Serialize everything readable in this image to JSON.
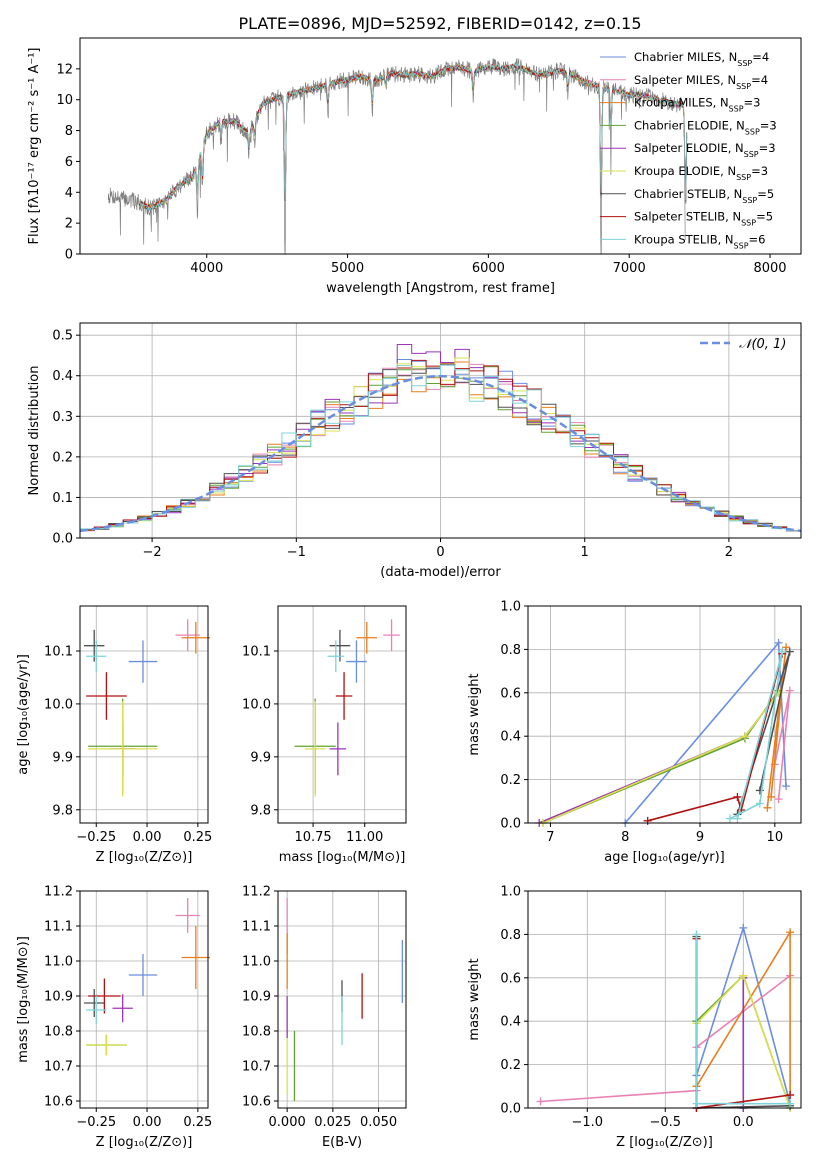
{
  "title": "PLATE=0896, MJD=52592, FIBERID=0142, z=0.15",
  "colors": {
    "Chabrier MILES": "#6a8ee0",
    "Salpeter MILES": "#e882b4",
    "Kroupa MILES": "#e87e1c",
    "Chabrier ELODIE": "#62a232",
    "Salpeter ELODIE": "#9b34b8",
    "Kroupa ELODIE": "#d9e04e",
    "Chabrier STELIB": "#505050",
    "Salpeter STELIB": "#b01010",
    "Kroupa STELIB": "#7cd4d8",
    "normal": "#6a8ee0",
    "observed": "#808080"
  },
  "chart_data": [
    {
      "type": "line",
      "xlabel": "wavelength [Angstrom, rest frame]",
      "ylabel": "Flux [fλ10⁻¹⁷ erg cm⁻² s⁻¹ A⁻¹]",
      "xlim": [
        3100,
        8220
      ],
      "ylim": [
        0,
        14
      ],
      "xticks": [
        4000,
        5000,
        6000,
        7000,
        8000
      ],
      "yticks": [
        0,
        2,
        4,
        6,
        8,
        10,
        12
      ],
      "grid": false,
      "legend_placement": "top-right",
      "legend": [
        {
          "name": "Chabrier MILES",
          "nssp": "4"
        },
        {
          "name": "Salpeter MILES",
          "nssp": "4"
        },
        {
          "name": "Kroupa MILES",
          "nssp": "3"
        },
        {
          "name": "Chabrier ELODIE",
          "nssp": "3"
        },
        {
          "name": "Salpeter ELODIE",
          "nssp": "3"
        },
        {
          "name": "Kroupa ELODIE",
          "nssp": "3"
        },
        {
          "name": "Chabrier STELIB",
          "nssp": "5"
        },
        {
          "name": "Salpeter STELIB",
          "nssp": "5"
        },
        {
          "name": "Kroupa STELIB",
          "nssp": "6"
        }
      ],
      "continuum": [
        [
          3300,
          3.8
        ],
        [
          3500,
          3.4
        ],
        [
          3600,
          3.0
        ],
        [
          3700,
          3.4
        ],
        [
          3800,
          4.4
        ],
        [
          3900,
          5.0
        ],
        [
          4000,
          7.8
        ],
        [
          4100,
          8.6
        ],
        [
          4200,
          8.6
        ],
        [
          4300,
          7.8
        ],
        [
          4400,
          9.8
        ],
        [
          4500,
          10.1
        ],
        [
          4600,
          10.4
        ],
        [
          4700,
          10.6
        ],
        [
          4800,
          10.8
        ],
        [
          4900,
          11.1
        ],
        [
          5000,
          11.3
        ],
        [
          5100,
          11.5
        ],
        [
          5200,
          11.2
        ],
        [
          5300,
          11.7
        ],
        [
          5400,
          11.6
        ],
        [
          5500,
          11.7
        ],
        [
          5600,
          11.5
        ],
        [
          5700,
          12.0
        ],
        [
          5800,
          12.1
        ],
        [
          5900,
          11.8
        ],
        [
          6000,
          12.2
        ],
        [
          6100,
          12.0
        ],
        [
          6200,
          12.2
        ],
        [
          6300,
          11.8
        ],
        [
          6400,
          11.6
        ],
        [
          6500,
          11.9
        ],
        [
          6600,
          11.6
        ],
        [
          6700,
          11.1
        ],
        [
          6800,
          10.8
        ],
        [
          6900,
          10.6
        ],
        [
          7000,
          10.3
        ],
        [
          7100,
          10.3
        ],
        [
          7200,
          10.0
        ],
        [
          7300,
          9.8
        ],
        [
          7400,
          9.6
        ]
      ],
      "absorption_lines": [
        {
          "x": 3934,
          "depth": 3.2
        },
        {
          "x": 3969,
          "depth": 3.0
        },
        {
          "x": 4102,
          "depth": 1.5
        },
        {
          "x": 4300,
          "depth": 1.3
        },
        {
          "x": 4340,
          "depth": 1.4
        },
        {
          "x": 4556,
          "depth": 10.4
        },
        {
          "x": 4861,
          "depth": 1.8
        },
        {
          "x": 5175,
          "depth": 2.2
        },
        {
          "x": 5270,
          "depth": 1.0
        },
        {
          "x": 5892,
          "depth": 1.6
        },
        {
          "x": 6563,
          "depth": 1.2
        },
        {
          "x": 6800,
          "depth": 10.8
        },
        {
          "x": 6870,
          "depth": 3.4
        },
        {
          "x": 7400,
          "depth": 9.6
        }
      ],
      "x_range_observed": [
        3300,
        7400
      ],
      "x_range_model": [
        3520,
        7410
      ]
    },
    {
      "type": "histogram",
      "xlabel": "(data-model)/error",
      "ylabel": "Normed distribution",
      "xlim": [
        -2.5,
        2.5
      ],
      "ylim": [
        0,
        0.53
      ],
      "xticks": [
        -2,
        -1,
        0,
        1,
        2
      ],
      "yticks": [
        0.0,
        0.1,
        0.2,
        0.3,
        0.4,
        0.5
      ],
      "grid": true,
      "legend_placement": "top-right",
      "normal_label": "𝒩(0, 1)",
      "bin_width": 0.1,
      "histogram_peaks": [
        0.46,
        0.42,
        0.4,
        0.4,
        0.5,
        0.45,
        0.42,
        0.44,
        0.43
      ],
      "series_order": [
        "Chabrier MILES",
        "Salpeter MILES",
        "Kroupa MILES",
        "Chabrier ELODIE",
        "Salpeter ELODIE",
        "Kroupa ELODIE",
        "Chabrier STELIB",
        "Salpeter STELIB",
        "Kroupa STELIB"
      ]
    },
    {
      "type": "scatter",
      "xlabel": "Z [log₁₀(Z/Z⊙)]",
      "ylabel": "age  [log₁₀(age/yr)]",
      "xlim": [
        -0.33,
        0.3
      ],
      "ylim": [
        9.775,
        10.185
      ],
      "xticks": [
        -0.25,
        0.0,
        0.25
      ],
      "xticklabels": [
        "−0.25",
        "0.00",
        "0.25"
      ],
      "yticks": [
        9.8,
        9.9,
        10.0,
        10.1
      ],
      "grid": true,
      "points": [
        {
          "series": "Chabrier MILES",
          "x": -0.02,
          "y": 10.08,
          "xerr": 0.07,
          "yerr": 0.04
        },
        {
          "series": "Salpeter MILES",
          "x": 0.2,
          "y": 10.13,
          "xerr": 0.06,
          "yerr": 0.03
        },
        {
          "series": "Kroupa MILES",
          "x": 0.24,
          "y": 10.125,
          "xerr": 0.07,
          "yerr": 0.03
        },
        {
          "series": "Chabrier ELODIE",
          "x": -0.12,
          "y": 9.92,
          "xerr": 0.17,
          "yerr": 0.09
        },
        {
          "series": "Salpeter ELODIE",
          "x": -0.12,
          "y": 9.915,
          "xerr": 0.06,
          "yerr": 0.05
        },
        {
          "series": "Kroupa ELODIE",
          "x": -0.12,
          "y": 9.915,
          "xerr": 0.17,
          "yerr": 0.09
        },
        {
          "series": "Chabrier STELIB",
          "x": -0.26,
          "y": 10.11,
          "xerr": 0.05,
          "yerr": 0.03
        },
        {
          "series": "Salpeter STELIB",
          "x": -0.2,
          "y": 10.015,
          "xerr": 0.1,
          "yerr": 0.045
        },
        {
          "series": "Kroupa STELIB",
          "x": -0.25,
          "y": 10.09,
          "xerr": 0.05,
          "yerr": 0.03
        }
      ]
    },
    {
      "type": "scatter",
      "xlabel": "mass [log₁₀(M/M⊙)]",
      "xlim": [
        10.58,
        11.2
      ],
      "ylim": [
        9.775,
        10.185
      ],
      "xticks": [
        10.75,
        11.0
      ],
      "xticklabels": [
        "10.75",
        "11.00"
      ],
      "yticks": [
        9.8,
        9.9,
        10.0,
        10.1
      ],
      "grid": true,
      "points": [
        {
          "series": "Chabrier MILES",
          "x": 10.96,
          "y": 10.08,
          "xerr": 0.05,
          "yerr": 0.04
        },
        {
          "series": "Salpeter MILES",
          "x": 11.13,
          "y": 10.13,
          "xerr": 0.04,
          "yerr": 0.03
        },
        {
          "series": "Kroupa MILES",
          "x": 11.01,
          "y": 10.125,
          "xerr": 0.05,
          "yerr": 0.03
        },
        {
          "series": "Chabrier ELODIE",
          "x": 10.76,
          "y": 9.92,
          "xerr": 0.1,
          "yerr": 0.09
        },
        {
          "series": "Salpeter ELODIE",
          "x": 10.87,
          "y": 9.915,
          "xerr": 0.04,
          "yerr": 0.05
        },
        {
          "series": "Kroupa ELODIE",
          "x": 10.76,
          "y": 9.915,
          "xerr": 0.05,
          "yerr": 0.09
        },
        {
          "series": "Chabrier STELIB",
          "x": 10.88,
          "y": 10.11,
          "xerr": 0.05,
          "yerr": 0.03
        },
        {
          "series": "Salpeter STELIB",
          "x": 10.9,
          "y": 10.015,
          "xerr": 0.04,
          "yerr": 0.045
        },
        {
          "series": "Kroupa STELIB",
          "x": 10.86,
          "y": 10.09,
          "xerr": 0.04,
          "yerr": 0.03
        }
      ]
    },
    {
      "type": "line",
      "xlabel": "age  [log₁₀(age/yr)]",
      "ylabel": "mass weight",
      "xlim": [
        6.7,
        10.35
      ],
      "ylim": [
        0,
        1
      ],
      "xticks": [
        7,
        8,
        9,
        10
      ],
      "yticks": [
        0.0,
        0.2,
        0.4,
        0.6,
        0.8,
        1.0
      ],
      "grid": true,
      "series": [
        {
          "series": "Chabrier MILES",
          "points": [
            [
              8.0,
              0.0
            ],
            [
              10.05,
              0.83
            ],
            [
              10.15,
              0.17
            ]
          ]
        },
        {
          "series": "Salpeter MILES",
          "points": [
            [
              10.0,
              0.27
            ],
            [
              10.2,
              0.61
            ],
            [
              10.05,
              0.11
            ]
          ]
        },
        {
          "series": "Kroupa MILES",
          "points": [
            [
              9.9,
              0.07
            ],
            [
              10.15,
              0.81
            ],
            [
              9.95,
              0.12
            ]
          ]
        },
        {
          "series": "Chabrier ELODIE",
          "points": [
            [
              6.9,
              0.0
            ],
            [
              9.6,
              0.39
            ],
            [
              10.05,
              0.61
            ]
          ]
        },
        {
          "series": "Salpeter ELODIE",
          "points": [
            [
              6.85,
              0.0
            ],
            [
              9.6,
              0.4
            ],
            [
              10.05,
              0.6
            ]
          ]
        },
        {
          "series": "Kroupa ELODIE",
          "points": [
            [
              6.9,
              0.0
            ],
            [
              9.6,
              0.4
            ],
            [
              10.05,
              0.6
            ]
          ]
        },
        {
          "series": "Chabrier STELIB",
          "points": [
            [
              9.8,
              0.15
            ],
            [
              10.2,
              0.79
            ],
            [
              9.5,
              0.04
            ]
          ]
        },
        {
          "series": "Salpeter STELIB",
          "points": [
            [
              8.3,
              0.01
            ],
            [
              9.5,
              0.12
            ],
            [
              9.55,
              0.06
            ],
            [
              10.1,
              0.78
            ]
          ]
        },
        {
          "series": "Kroupa STELIB",
          "points": [
            [
              9.4,
              0.02
            ],
            [
              9.8,
              0.09
            ],
            [
              10.1,
              0.79
            ],
            [
              9.5,
              0.02
            ]
          ]
        }
      ]
    },
    {
      "type": "scatter",
      "xlabel": "Z [log₁₀(Z/Z⊙)]",
      "ylabel": "mass [log₁₀(M/M⊙)]",
      "xlim": [
        -0.33,
        0.3
      ],
      "ylim": [
        10.58,
        11.2
      ],
      "xticks": [
        -0.25,
        0.0,
        0.25
      ],
      "xticklabels": [
        "−0.25",
        "0.00",
        "0.25"
      ],
      "yticks": [
        10.6,
        10.7,
        10.8,
        10.9,
        11.0,
        11.1,
        11.2
      ],
      "grid": true,
      "points": [
        {
          "series": "Chabrier MILES",
          "x": -0.02,
          "y": 10.96,
          "xerr": 0.07,
          "yerr": 0.06
        },
        {
          "series": "Salpeter MILES",
          "x": 0.2,
          "y": 11.13,
          "xerr": 0.06,
          "yerr": 0.05
        },
        {
          "series": "Kroupa MILES",
          "x": 0.24,
          "y": 11.01,
          "xerr": 0.07,
          "yerr": 0.09
        },
        {
          "series": "Chabrier ELODIE",
          "x": -0.2,
          "y": 10.76,
          "xerr": 0.1,
          "yerr": 0.03
        },
        {
          "series": "Salpeter ELODIE",
          "x": -0.12,
          "y": 10.865,
          "xerr": 0.05,
          "yerr": 0.04
        },
        {
          "series": "Kroupa ELODIE",
          "x": -0.2,
          "y": 10.76,
          "xerr": 0.1,
          "yerr": 0.03
        },
        {
          "series": "Chabrier STELIB",
          "x": -0.26,
          "y": 10.88,
          "xerr": 0.05,
          "yerr": 0.04
        },
        {
          "series": "Salpeter STELIB",
          "x": -0.21,
          "y": 10.9,
          "xerr": 0.08,
          "yerr": 0.05
        },
        {
          "series": "Kroupa STELIB",
          "x": -0.25,
          "y": 10.86,
          "xerr": 0.05,
          "yerr": 0.04
        }
      ]
    },
    {
      "type": "scatter",
      "xlabel": "E(B-V)",
      "xlim": [
        -0.005,
        0.065
      ],
      "ylim": [
        10.58,
        11.2
      ],
      "xticks": [
        0.0,
        0.025,
        0.05
      ],
      "xticklabels": [
        "0.000",
        "0.025",
        "0.050"
      ],
      "yticks": [
        10.6,
        10.7,
        10.8,
        10.9,
        11.0,
        11.1,
        11.2
      ],
      "grid": true,
      "points": [
        {
          "series": "Chabrier MILES",
          "x": 0.063,
          "y": 10.97,
          "xerr": 0,
          "yerr": 0.09
        },
        {
          "series": "Salpeter MILES",
          "x": 0.0,
          "y": 11.1,
          "xerr": 0,
          "yerr": 0.08
        },
        {
          "series": "Kroupa MILES",
          "x": 0.0,
          "y": 11.0,
          "xerr": 0,
          "yerr": 0.08
        },
        {
          "series": "Chabrier ELODIE",
          "x": 0.004,
          "y": 10.7,
          "xerr": 0,
          "yerr": 0.1
        },
        {
          "series": "Salpeter ELODIE",
          "x": 0.0,
          "y": 10.84,
          "xerr": 0,
          "yerr": 0.06
        },
        {
          "series": "Kroupa ELODIE",
          "x": 0.0,
          "y": 10.7,
          "xerr": 0,
          "yerr": 0.08
        },
        {
          "series": "Chabrier STELIB",
          "x": 0.03,
          "y": 10.9,
          "xerr": 0,
          "yerr": 0.045
        },
        {
          "series": "Salpeter STELIB",
          "x": 0.041,
          "y": 10.9,
          "xerr": 0,
          "yerr": 0.065
        },
        {
          "series": "Kroupa STELIB",
          "x": 0.03,
          "y": 10.83,
          "xerr": 0,
          "yerr": 0.07
        }
      ]
    },
    {
      "type": "line",
      "xlabel": "Z [log₁₀(Z/Z⊙)]",
      "ylabel": "mass weight",
      "xlim": [
        -1.38,
        0.37
      ],
      "ylim": [
        0,
        1
      ],
      "xticks": [
        -1.0,
        -0.5,
        0.0
      ],
      "xticklabels": [
        "−1.0",
        "−0.5",
        "0.0"
      ],
      "yticks": [
        0.0,
        0.2,
        0.4,
        0.6,
        0.8,
        1.0
      ],
      "grid": true,
      "series": [
        {
          "series": "Chabrier MILES",
          "points": [
            [
              -0.3,
              0.0
            ],
            [
              -0.3,
              0.15
            ],
            [
              0.0,
              0.83
            ],
            [
              0.3,
              0.02
            ]
          ]
        },
        {
          "series": "Salpeter MILES",
          "points": [
            [
              -1.3,
              0.03
            ],
            [
              -0.3,
              0.08
            ],
            [
              -0.3,
              0.28
            ],
            [
              0.3,
              0.61
            ]
          ]
        },
        {
          "series": "Kroupa MILES",
          "points": [
            [
              -0.3,
              0.1
            ],
            [
              0.3,
              0.81
            ],
            [
              0.3,
              0.06
            ]
          ]
        },
        {
          "series": "Chabrier ELODIE",
          "points": [
            [
              -0.3,
              0.4
            ],
            [
              0.0,
              0.61
            ],
            [
              0.3,
              0.0
            ]
          ]
        },
        {
          "series": "Salpeter ELODIE",
          "points": [
            [
              0.0,
              0.0
            ],
            [
              0.0,
              0.6
            ],
            [
              0.0,
              0.0
            ]
          ]
        },
        {
          "series": "Kroupa ELODIE",
          "points": [
            [
              -0.3,
              0.39
            ],
            [
              0.0,
              0.61
            ],
            [
              0.3,
              0.0
            ]
          ]
        },
        {
          "series": "Chabrier STELIB",
          "points": [
            [
              -0.3,
              0.79
            ],
            [
              -0.3,
              0.0
            ],
            [
              0.3,
              0.01
            ]
          ]
        },
        {
          "series": "Salpeter STELIB",
          "points": [
            [
              -0.3,
              0.78
            ],
            [
              -0.3,
              0.0
            ],
            [
              0.3,
              0.06
            ]
          ]
        },
        {
          "series": "Kroupa STELIB",
          "points": [
            [
              -0.3,
              0.8
            ],
            [
              -0.3,
              0.02
            ],
            [
              0.3,
              0.02
            ]
          ]
        }
      ]
    }
  ]
}
